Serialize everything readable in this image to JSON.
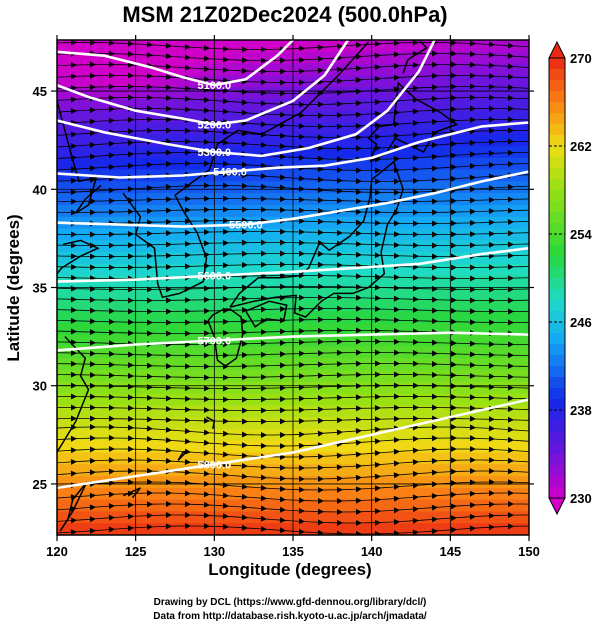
{
  "chart_data": {
    "type": "heatmap",
    "title": "MSM 21Z02Dec2024 (500.0hPa)",
    "xlabel": "Longitude (degrees)",
    "ylabel": "Latitude  (degrees)",
    "xlim": [
      120,
      150
    ],
    "ylim": [
      22.4,
      47.6
    ],
    "x_ticks": [
      "120",
      "125",
      "130",
      "135",
      "140",
      "145",
      "150"
    ],
    "y_ticks": [
      "25",
      "30",
      "35",
      "40",
      "45"
    ],
    "colorbar": {
      "min": 230,
      "max": 270,
      "tick_labels": [
        "270",
        "262",
        "254",
        "246",
        "238",
        "230"
      ]
    },
    "contours": [
      {
        "label": "5100.0",
        "values": [
          [
            120,
            47.0
          ],
          [
            123,
            46.8
          ],
          [
            126,
            46.2
          ],
          [
            128,
            45.7
          ],
          [
            130,
            45.3
          ],
          [
            132,
            45.6
          ],
          [
            134,
            46.8
          ],
          [
            135,
            47.6
          ]
        ]
      },
      {
        "label": "5200.0",
        "values": [
          [
            120,
            45.3
          ],
          [
            122,
            44.7
          ],
          [
            125,
            44.0
          ],
          [
            128,
            43.6
          ],
          [
            130,
            43.3
          ],
          [
            132,
            43.5
          ],
          [
            135,
            44.5
          ],
          [
            137,
            45.8
          ],
          [
            138.5,
            47.6
          ]
        ]
      },
      {
        "label": "5300.0",
        "values": [
          [
            120,
            43.5
          ],
          [
            123,
            42.9
          ],
          [
            127,
            42.3
          ],
          [
            130,
            41.9
          ],
          [
            133,
            41.7
          ],
          [
            136,
            42.1
          ],
          [
            139,
            42.8
          ],
          [
            141,
            44.0
          ],
          [
            143,
            46.0
          ],
          [
            144,
            47.6
          ]
        ]
      },
      {
        "label": "5400.0",
        "values": [
          [
            120,
            40.8
          ],
          [
            124,
            40.6
          ],
          [
            128,
            40.7
          ],
          [
            131,
            40.9
          ],
          [
            134,
            41.1
          ],
          [
            137,
            41.2
          ],
          [
            140,
            41.6
          ],
          [
            143,
            42.4
          ],
          [
            147,
            43.2
          ],
          [
            150,
            43.4
          ]
        ]
      },
      {
        "label": "5500.0",
        "values": [
          [
            120,
            38.3
          ],
          [
            124,
            38.2
          ],
          [
            128,
            38.1
          ],
          [
            132,
            38.2
          ],
          [
            135,
            38.5
          ],
          [
            138,
            38.9
          ],
          [
            141,
            39.3
          ],
          [
            144,
            39.8
          ],
          [
            147,
            40.4
          ],
          [
            150,
            40.9
          ]
        ]
      },
      {
        "label": "5600.0",
        "values": [
          [
            120,
            35.3
          ],
          [
            125,
            35.4
          ],
          [
            130,
            35.6
          ],
          [
            135,
            35.8
          ],
          [
            139,
            36.0
          ],
          [
            143,
            36.2
          ],
          [
            147,
            36.7
          ],
          [
            150,
            37.0
          ]
        ]
      },
      {
        "label": "5700.0",
        "values": [
          [
            120,
            31.8
          ],
          [
            125,
            32.1
          ],
          [
            130,
            32.3
          ],
          [
            135,
            32.5
          ],
          [
            140,
            32.6
          ],
          [
            145,
            32.7
          ],
          [
            150,
            32.6
          ]
        ]
      },
      {
        "label": "5800.0",
        "values": [
          [
            120,
            24.8
          ],
          [
            125,
            25.4
          ],
          [
            130,
            26.0
          ],
          [
            135,
            26.6
          ],
          [
            140,
            27.5
          ],
          [
            145,
            28.4
          ],
          [
            150,
            29.3
          ]
        ]
      }
    ],
    "footer": [
      "Drawing by DCL (https://www.gfd-dennou.org/library/dcl/)",
      "Data from http://database.rish.kyoto-u.ac.jp/arch/jmadata/"
    ],
    "grid": true
  }
}
